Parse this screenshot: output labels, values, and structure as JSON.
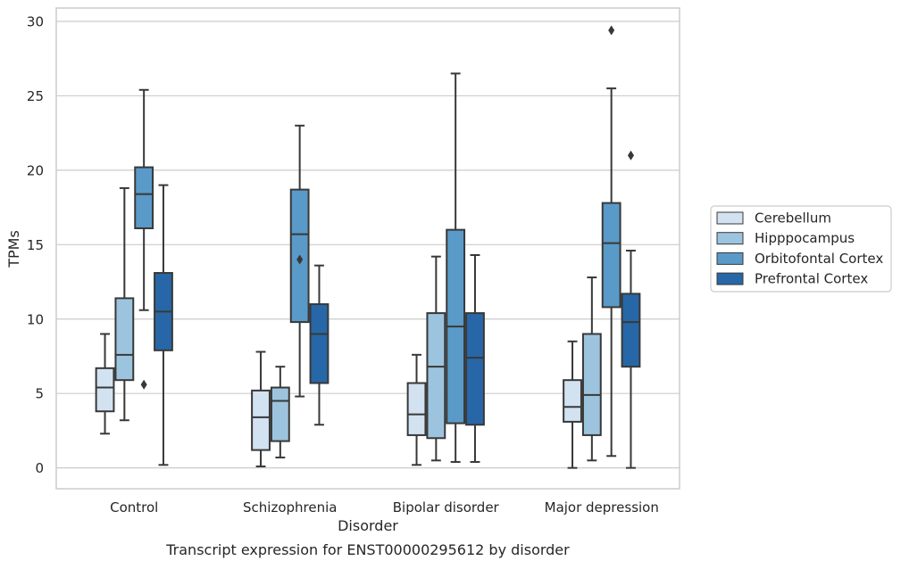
{
  "chart_data": {
    "type": "box",
    "title": "",
    "caption": "Transcript expression for ENST00000295612 by disorder",
    "xlabel": "Disorder",
    "ylabel": "TPMs",
    "ylim": [
      -1.4,
      30.9
    ],
    "yticks": [
      0,
      5,
      10,
      15,
      20,
      25,
      30
    ],
    "grid": "horizontal",
    "legend_position": "right",
    "categories": [
      "Control",
      "Schizophrenia",
      "Bipolar disorder",
      "Major depression"
    ],
    "series": [
      {
        "name": "Cerebellum",
        "color": "#d3e2f1",
        "boxes": [
          {
            "whisker_low": 2.3,
            "q1": 3.8,
            "median": 5.4,
            "q3": 6.7,
            "whisker_high": 9.0,
            "outliers": []
          },
          {
            "whisker_low": 0.1,
            "q1": 1.2,
            "median": 3.4,
            "q3": 5.2,
            "whisker_high": 7.8,
            "outliers": []
          },
          {
            "whisker_low": 0.2,
            "q1": 2.2,
            "median": 3.6,
            "q3": 5.7,
            "whisker_high": 7.6,
            "outliers": []
          },
          {
            "whisker_low": 0.0,
            "q1": 3.1,
            "median": 4.1,
            "q3": 5.9,
            "whisker_high": 8.5,
            "outliers": []
          }
        ]
      },
      {
        "name": "Hipppocampus",
        "color": "#9dc4de",
        "boxes": [
          {
            "whisker_low": 3.2,
            "q1": 5.9,
            "median": 7.6,
            "q3": 11.4,
            "whisker_high": 18.8,
            "outliers": []
          },
          {
            "whisker_low": 0.7,
            "q1": 1.8,
            "median": 4.5,
            "q3": 5.4,
            "whisker_high": 6.8,
            "outliers": []
          },
          {
            "whisker_low": 0.5,
            "q1": 2.0,
            "median": 6.8,
            "q3": 10.4,
            "whisker_high": 14.2,
            "outliers": []
          },
          {
            "whisker_low": 0.5,
            "q1": 2.2,
            "median": 4.9,
            "q3": 9.0,
            "whisker_high": 12.8,
            "outliers": []
          }
        ]
      },
      {
        "name": "Orbitofontal Cortex",
        "color": "#5a9ac8",
        "boxes": [
          {
            "whisker_low": 10.6,
            "q1": 16.1,
            "median": 18.4,
            "q3": 20.2,
            "whisker_high": 25.4,
            "outliers": [
              5.6
            ]
          },
          {
            "whisker_low": 4.8,
            "q1": 9.8,
            "median": 15.7,
            "q3": 18.7,
            "whisker_high": 23.0,
            "outliers": [
              14.0
            ]
          },
          {
            "whisker_low": 0.4,
            "q1": 3.0,
            "median": 9.5,
            "q3": 16.0,
            "whisker_high": 26.5,
            "outliers": []
          },
          {
            "whisker_low": 0.8,
            "q1": 10.8,
            "median": 15.1,
            "q3": 17.8,
            "whisker_high": 25.5,
            "outliers": [
              29.4
            ]
          }
        ]
      },
      {
        "name": "Prefrontal Cortex",
        "color": "#2767a7",
        "boxes": [
          {
            "whisker_low": 0.2,
            "q1": 7.9,
            "median": 10.5,
            "q3": 13.1,
            "whisker_high": 19.0,
            "outliers": []
          },
          {
            "whisker_low": 2.9,
            "q1": 5.7,
            "median": 9.0,
            "q3": 11.0,
            "whisker_high": 13.6,
            "outliers": []
          },
          {
            "whisker_low": 0.4,
            "q1": 2.9,
            "median": 7.4,
            "q3": 10.4,
            "whisker_high": 14.3,
            "outliers": []
          },
          {
            "whisker_low": 0.0,
            "q1": 6.8,
            "median": 9.8,
            "q3": 11.7,
            "whisker_high": 14.6,
            "outliers": [
              21.0
            ]
          }
        ]
      }
    ]
  }
}
